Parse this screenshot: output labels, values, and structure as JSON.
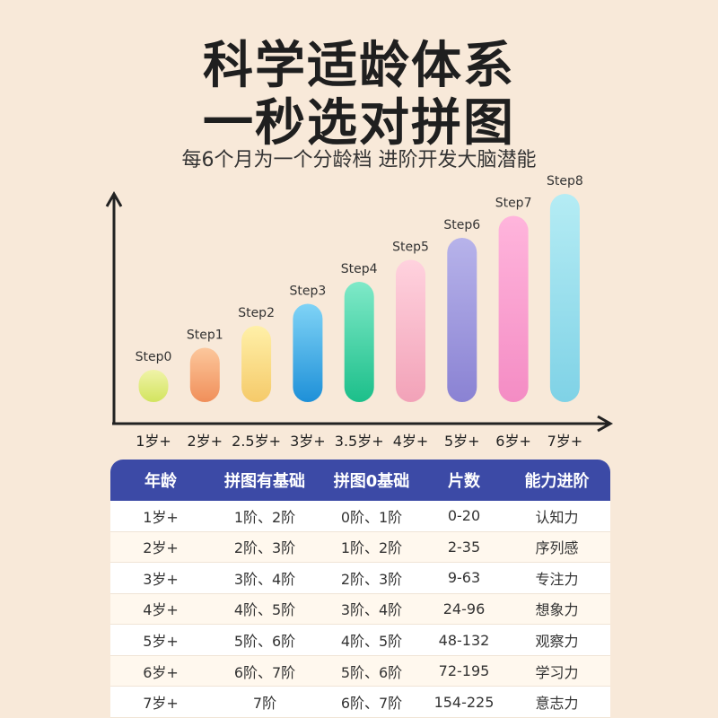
{
  "header": {
    "title_line1": "科学适龄体系",
    "title_line2": "一秒选对拼图",
    "subtitle": "每6个月为一个分龄档 进阶开发大脑潜能"
  },
  "chart_data": {
    "type": "bar",
    "categories": [
      "1岁+",
      "2岁+",
      "2.5岁+",
      "3岁+",
      "3.5岁+",
      "4岁+",
      "5岁+",
      "6岁+",
      "7岁+"
    ],
    "data_labels": [
      "Step0",
      "Step1",
      "Step2",
      "Step3",
      "Step4",
      "Step5",
      "Step6",
      "Step7",
      "Step8"
    ],
    "values": [
      0,
      1,
      2,
      3,
      4,
      5,
      6,
      7,
      8
    ],
    "ylim": [
      0,
      8
    ],
    "colors": [
      [
        "#f0f3a8",
        "#d2e45f"
      ],
      [
        "#fcc79c",
        "#f08f5a"
      ],
      [
        "#fff0a8",
        "#f5ca6a"
      ],
      [
        "#7fd3f6",
        "#1e90d8"
      ],
      [
        "#7fe9c8",
        "#1cbf8a"
      ],
      [
        "#ffd2de",
        "#f2a2b8"
      ],
      [
        "#b7b3ea",
        "#8a82d3"
      ],
      [
        "#ffb5dc",
        "#f48cc4"
      ],
      [
        "#b5ecf4",
        "#7fd2e6"
      ]
    ],
    "grid": false,
    "xlabel": "",
    "ylabel": ""
  },
  "table": {
    "headers": [
      "年龄",
      "拼图有基础",
      "拼图0基础",
      "片数",
      "能力进阶"
    ],
    "rows": [
      [
        "1岁+",
        "1阶、2阶",
        "0阶、1阶",
        "0-20",
        "认知力"
      ],
      [
        "2岁+",
        "2阶、3阶",
        "1阶、2阶",
        "2-35",
        "序列感"
      ],
      [
        "3岁+",
        "3阶、4阶",
        "2阶、3阶",
        "9-63",
        "专注力"
      ],
      [
        "4岁+",
        "4阶、5阶",
        "3阶、4阶",
        "24-96",
        "想象力"
      ],
      [
        "5岁+",
        "5阶、6阶",
        "4阶、5阶",
        "48-132",
        "观察力"
      ],
      [
        "6岁+",
        "6阶、7阶",
        "5阶、6阶",
        "72-195",
        "学习力"
      ],
      [
        "7岁+",
        "7阶",
        "6阶、7阶",
        "154-225",
        "意志力"
      ]
    ],
    "header_color": "#3c4aa6"
  }
}
